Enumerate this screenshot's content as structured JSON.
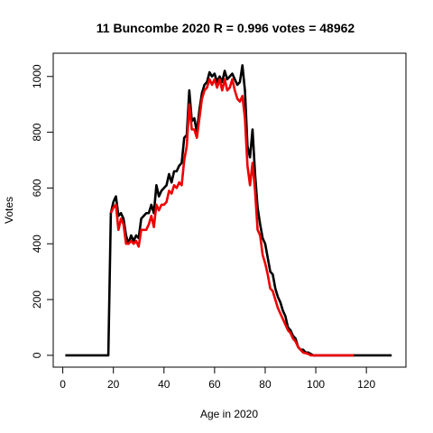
{
  "chart_data": {
    "type": "line",
    "title": "11 Buncombe 2020 R = 0.996 votes = 48962",
    "xlabel": "Age in 2020",
    "ylabel": "Votes",
    "xlim": [
      0,
      130
    ],
    "ylim": [
      0,
      1040
    ],
    "x_ticks": [
      0,
      20,
      40,
      60,
      80,
      100,
      120
    ],
    "y_ticks": [
      0,
      200,
      400,
      600,
      800,
      1000
    ],
    "grid": false,
    "colors": {
      "series_black": "#000000",
      "series_red": "#ee0000"
    },
    "series": [
      {
        "color": "#000000",
        "points": [
          [
            1,
            0
          ],
          [
            18,
            0
          ],
          [
            19,
            510
          ],
          [
            20,
            550
          ],
          [
            21,
            570
          ],
          [
            22,
            500
          ],
          [
            23,
            510
          ],
          [
            24,
            490
          ],
          [
            25,
            430
          ],
          [
            26,
            400
          ],
          [
            27,
            430
          ],
          [
            28,
            410
          ],
          [
            29,
            430
          ],
          [
            30,
            420
          ],
          [
            31,
            490
          ],
          [
            32,
            500
          ],
          [
            33,
            510
          ],
          [
            34,
            510
          ],
          [
            35,
            540
          ],
          [
            36,
            510
          ],
          [
            37,
            610
          ],
          [
            38,
            570
          ],
          [
            39,
            590
          ],
          [
            40,
            600
          ],
          [
            41,
            610
          ],
          [
            42,
            650
          ],
          [
            43,
            620
          ],
          [
            44,
            660
          ],
          [
            45,
            660
          ],
          [
            46,
            680
          ],
          [
            47,
            690
          ],
          [
            48,
            780
          ],
          [
            49,
            790
          ],
          [
            50,
            950
          ],
          [
            51,
            840
          ],
          [
            52,
            850
          ],
          [
            53,
            800
          ],
          [
            54,
            880
          ],
          [
            55,
            940
          ],
          [
            56,
            970
          ],
          [
            57,
            980
          ],
          [
            58,
            1015
          ],
          [
            59,
            1000
          ],
          [
            60,
            1010
          ],
          [
            61,
            980
          ],
          [
            62,
            1000
          ],
          [
            63,
            980
          ],
          [
            64,
            1020
          ],
          [
            65,
            990
          ],
          [
            66,
            1000
          ],
          [
            67,
            1010
          ],
          [
            68,
            990
          ],
          [
            69,
            970
          ],
          [
            70,
            980
          ],
          [
            71,
            1040
          ],
          [
            72,
            950
          ],
          [
            73,
            750
          ],
          [
            74,
            710
          ],
          [
            75,
            810
          ],
          [
            76,
            650
          ],
          [
            77,
            530
          ],
          [
            78,
            470
          ],
          [
            79,
            420
          ],
          [
            80,
            400
          ],
          [
            81,
            350
          ],
          [
            82,
            300
          ],
          [
            83,
            290
          ],
          [
            84,
            240
          ],
          [
            85,
            210
          ],
          [
            86,
            190
          ],
          [
            87,
            160
          ],
          [
            88,
            140
          ],
          [
            89,
            100
          ],
          [
            90,
            90
          ],
          [
            91,
            70
          ],
          [
            92,
            60
          ],
          [
            93,
            30
          ],
          [
            94,
            20
          ],
          [
            95,
            20
          ],
          [
            96,
            10
          ],
          [
            97,
            10
          ],
          [
            98,
            5
          ],
          [
            99,
            0
          ],
          [
            130,
            0
          ]
        ]
      },
      {
        "color": "#ee0000",
        "points": [
          [
            19,
            510
          ],
          [
            20,
            530
          ],
          [
            21,
            540
          ],
          [
            22,
            450
          ],
          [
            23,
            490
          ],
          [
            24,
            470
          ],
          [
            25,
            400
          ],
          [
            26,
            400
          ],
          [
            27,
            410
          ],
          [
            28,
            400
          ],
          [
            29,
            410
          ],
          [
            30,
            390
          ],
          [
            31,
            450
          ],
          [
            32,
            450
          ],
          [
            33,
            450
          ],
          [
            34,
            470
          ],
          [
            35,
            500
          ],
          [
            36,
            460
          ],
          [
            37,
            540
          ],
          [
            38,
            520
          ],
          [
            39,
            540
          ],
          [
            40,
            540
          ],
          [
            41,
            550
          ],
          [
            42,
            590
          ],
          [
            43,
            580
          ],
          [
            44,
            610
          ],
          [
            45,
            600
          ],
          [
            46,
            620
          ],
          [
            47,
            610
          ],
          [
            48,
            700
          ],
          [
            49,
            750
          ],
          [
            50,
            900
          ],
          [
            51,
            810
          ],
          [
            52,
            810
          ],
          [
            53,
            780
          ],
          [
            54,
            850
          ],
          [
            55,
            920
          ],
          [
            56,
            950
          ],
          [
            57,
            960
          ],
          [
            58,
            990
          ],
          [
            59,
            970
          ],
          [
            60,
            990
          ],
          [
            61,
            960
          ],
          [
            62,
            990
          ],
          [
            63,
            950
          ],
          [
            64,
            990
          ],
          [
            65,
            950
          ],
          [
            66,
            960
          ],
          [
            67,
            990
          ],
          [
            68,
            950
          ],
          [
            69,
            920
          ],
          [
            70,
            910
          ],
          [
            71,
            930
          ],
          [
            72,
            850
          ],
          [
            73,
            680
          ],
          [
            74,
            610
          ],
          [
            75,
            690
          ],
          [
            76,
            590
          ],
          [
            77,
            450
          ],
          [
            78,
            430
          ],
          [
            79,
            360
          ],
          [
            80,
            330
          ],
          [
            81,
            290
          ],
          [
            82,
            240
          ],
          [
            83,
            230
          ],
          [
            84,
            200
          ],
          [
            85,
            170
          ],
          [
            86,
            150
          ],
          [
            87,
            130
          ],
          [
            88,
            110
          ],
          [
            89,
            90
          ],
          [
            90,
            80
          ],
          [
            91,
            60
          ],
          [
            92,
            50
          ],
          [
            93,
            30
          ],
          [
            94,
            20
          ],
          [
            95,
            10
          ],
          [
            96,
            8
          ],
          [
            97,
            5
          ],
          [
            98,
            0
          ],
          [
            110,
            0
          ],
          [
            115,
            0
          ]
        ]
      }
    ]
  }
}
